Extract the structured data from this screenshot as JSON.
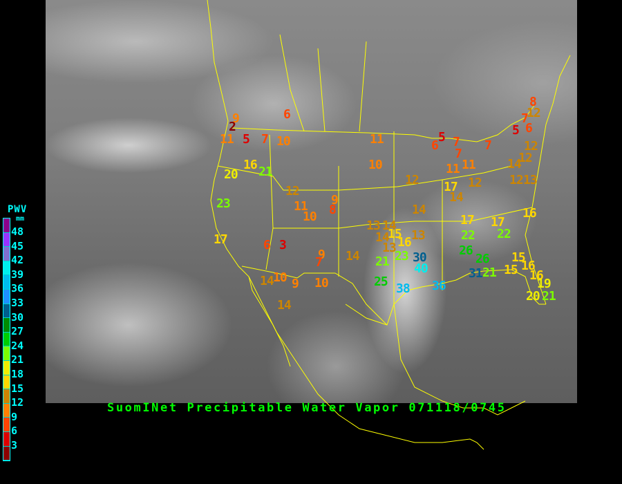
{
  "title": "SuomINet Precipitable Water Vapor 071118/0745",
  "legend": {
    "title": "PWV",
    "unit": "mm",
    "ticks": [
      "48",
      "45",
      "42",
      "39",
      "36",
      "33",
      "30",
      "27",
      "24",
      "21",
      "18",
      "15",
      "12",
      "9",
      "6",
      "3"
    ],
    "colors": [
      "#8b008b",
      "#9933ff",
      "#8070d0",
      "#00eeee",
      "#00bbee",
      "#1e90ff",
      "#005f8f",
      "#008b00",
      "#00cd00",
      "#7cfc00",
      "#eeee00",
      "#ffd700",
      "#cd8500",
      "#ff8000",
      "#ff4500",
      "#dd0000",
      "#8b0000"
    ]
  },
  "border_color": "#ffff00",
  "readings": [
    {
      "value": "9"
    },
    {
      "value": "2"
    },
    {
      "value": "11"
    },
    {
      "value": "5"
    },
    {
      "value": "7"
    },
    {
      "value": "10"
    },
    {
      "value": "6"
    },
    {
      "value": "16"
    },
    {
      "value": "21"
    },
    {
      "value": "20"
    },
    {
      "value": "23"
    },
    {
      "value": "12"
    },
    {
      "value": "11"
    },
    {
      "value": "9"
    },
    {
      "value": "8"
    },
    {
      "value": "10"
    },
    {
      "value": "11"
    },
    {
      "value": "10"
    },
    {
      "value": "6"
    },
    {
      "value": "5"
    },
    {
      "value": "7"
    },
    {
      "value": "7"
    },
    {
      "value": "11"
    },
    {
      "value": "11"
    },
    {
      "value": "7"
    },
    {
      "value": "12"
    },
    {
      "value": "17"
    },
    {
      "value": "12"
    },
    {
      "value": "14"
    },
    {
      "value": "14"
    },
    {
      "value": "5"
    },
    {
      "value": "6"
    },
    {
      "value": "7"
    },
    {
      "value": "12"
    },
    {
      "value": "8"
    },
    {
      "value": "12"
    },
    {
      "value": "12"
    },
    {
      "value": "14"
    },
    {
      "value": "12"
    },
    {
      "value": "13"
    },
    {
      "value": "16"
    },
    {
      "value": "17"
    },
    {
      "value": "17"
    },
    {
      "value": "22"
    },
    {
      "value": "22"
    },
    {
      "value": "13"
    },
    {
      "value": "14"
    },
    {
      "value": "15"
    },
    {
      "value": "14"
    },
    {
      "value": "13"
    },
    {
      "value": "16"
    },
    {
      "value": "13"
    },
    {
      "value": "14"
    },
    {
      "value": "21"
    },
    {
      "value": "23"
    },
    {
      "value": "30"
    },
    {
      "value": "40"
    },
    {
      "value": "25"
    },
    {
      "value": "38"
    },
    {
      "value": "36"
    },
    {
      "value": "26"
    },
    {
      "value": "26"
    },
    {
      "value": "31"
    },
    {
      "value": "21"
    },
    {
      "value": "15"
    },
    {
      "value": "15"
    },
    {
      "value": "16"
    },
    {
      "value": "16"
    },
    {
      "value": "19"
    },
    {
      "value": "20"
    },
    {
      "value": "21"
    },
    {
      "value": "17"
    },
    {
      "value": "6"
    },
    {
      "value": "3"
    },
    {
      "value": "9"
    },
    {
      "value": "7"
    },
    {
      "value": "14"
    },
    {
      "value": "10"
    },
    {
      "value": "9"
    },
    {
      "value": "10"
    },
    {
      "value": "14"
    },
    {
      "value": "14"
    }
  ]
}
